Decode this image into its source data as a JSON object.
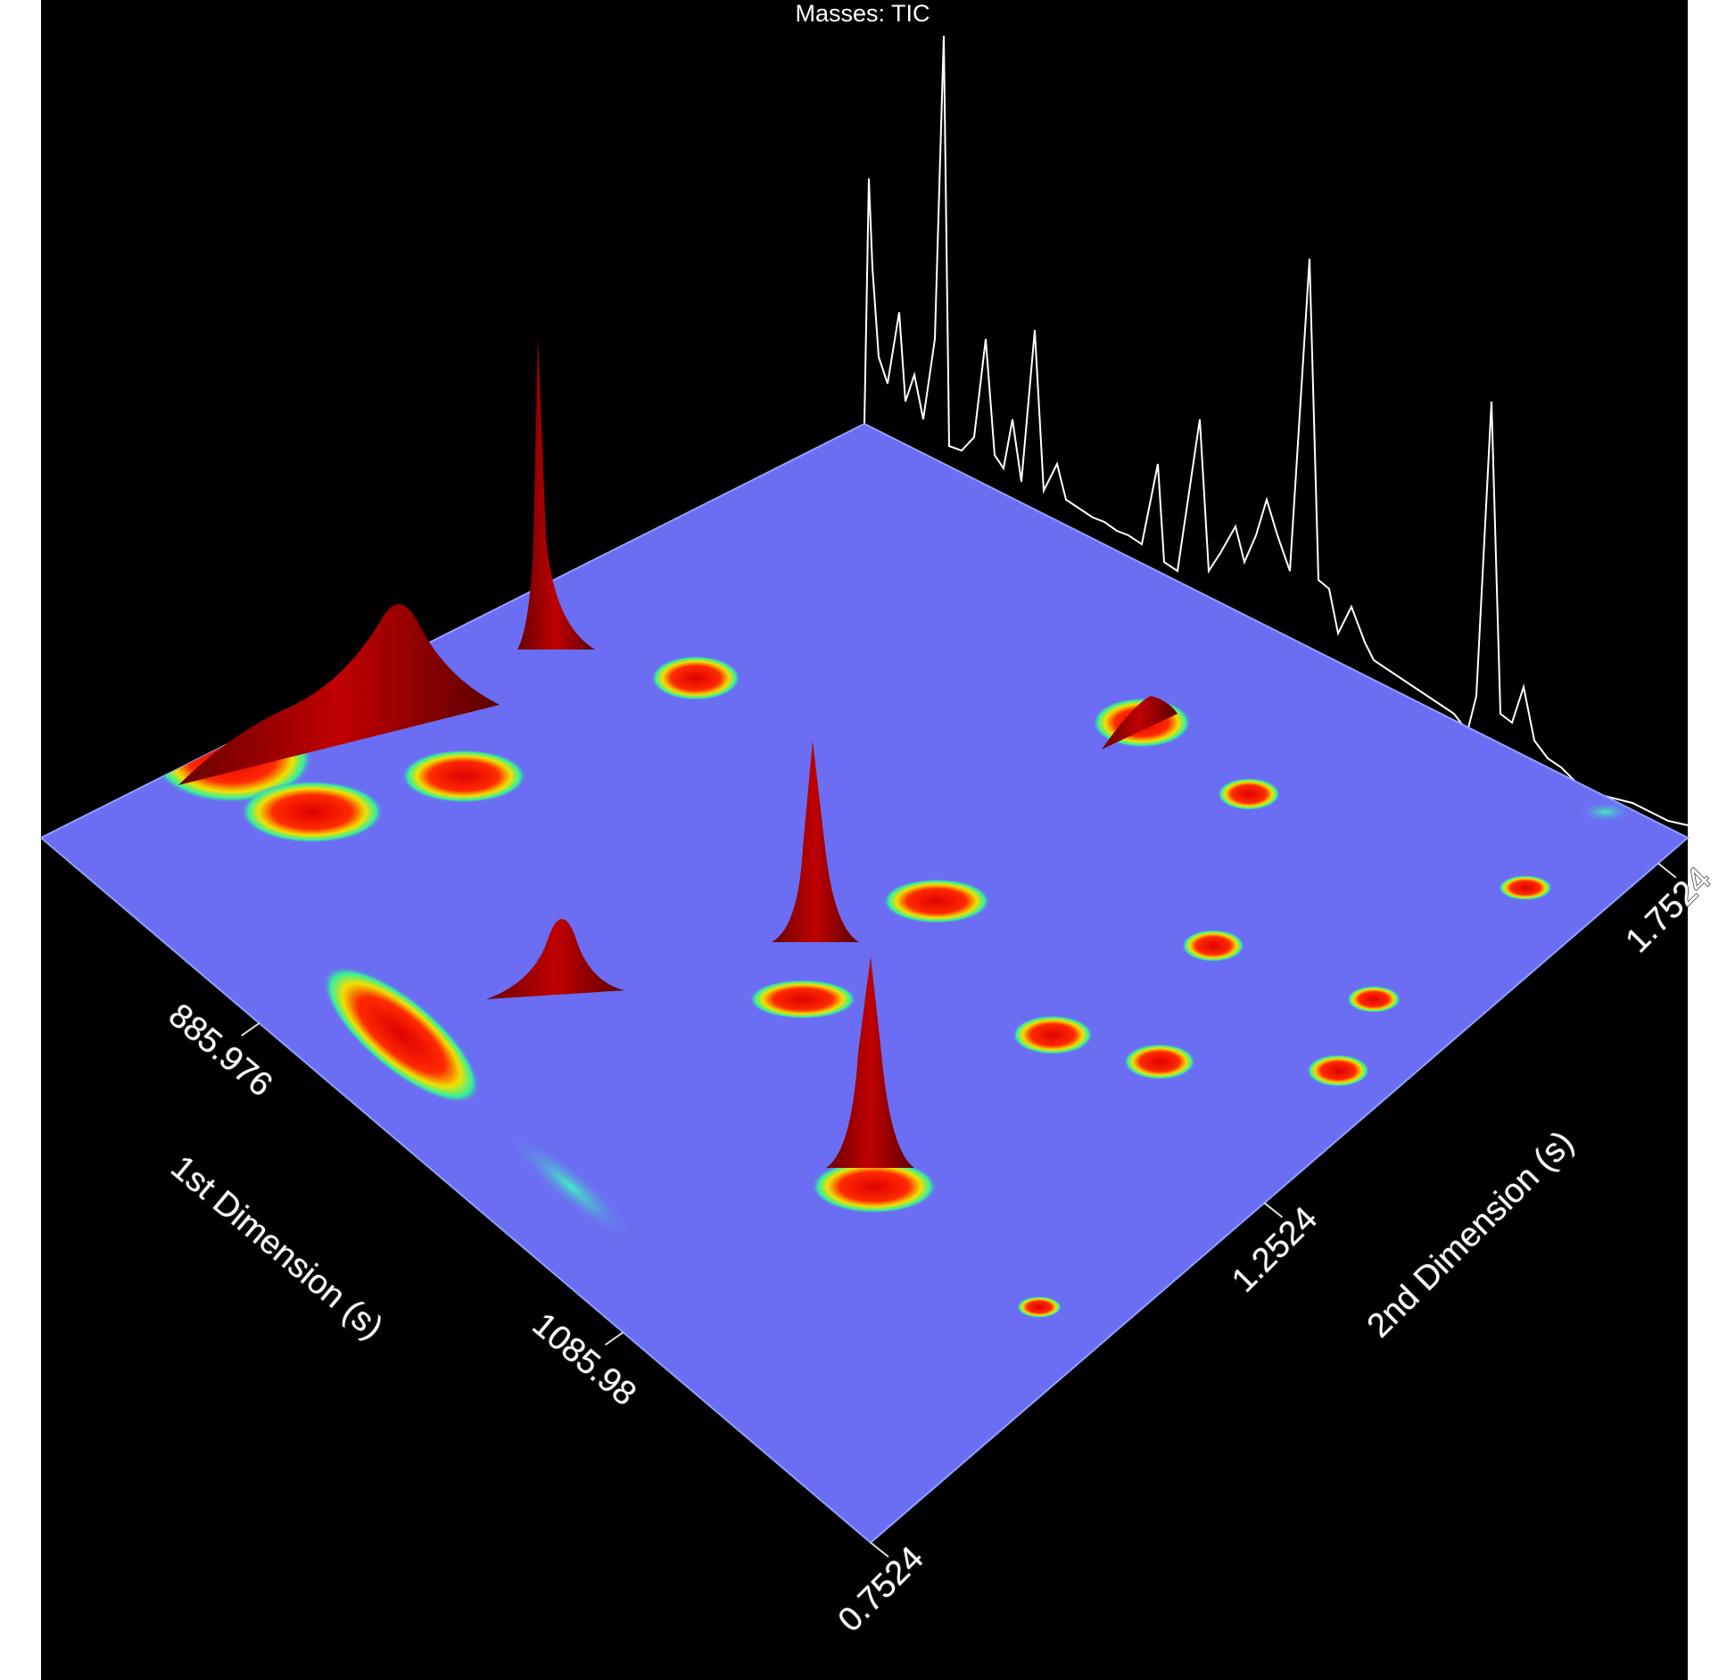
{
  "chart_data": {
    "type": "surface3d",
    "title": "Masses:  TIC",
    "x_label": "1st Dimension (s)",
    "y_label": "2nd Dimension (s)",
    "xlim": [
      766,
      1222
    ],
    "xticks": [
      885.976,
      1085.98
    ],
    "ylim": [
      0.7524,
      1.79
    ],
    "yticks": [
      0.7524,
      1.2524,
      1.7524
    ]
  }
}
